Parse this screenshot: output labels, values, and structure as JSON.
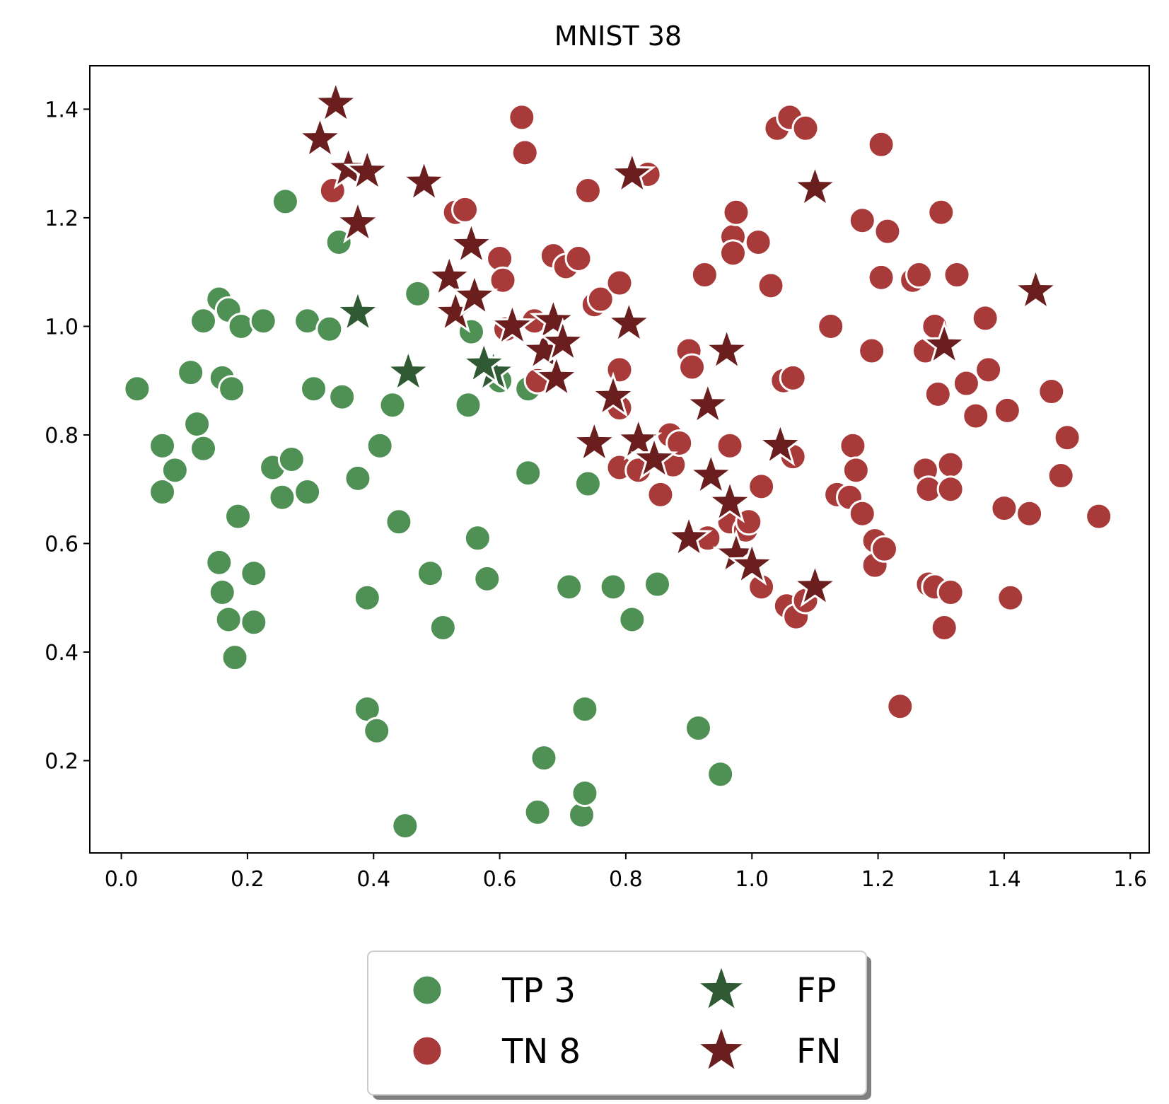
{
  "chart_data": {
    "type": "scatter",
    "title": "MNIST 38",
    "xlabel": "",
    "ylabel": "",
    "xlim": [
      -0.05,
      1.63
    ],
    "ylim": [
      0.03,
      1.48
    ],
    "xticks": [
      0.0,
      0.2,
      0.4,
      0.6,
      0.8,
      1.0,
      1.2,
      1.4,
      1.6
    ],
    "xtick_labels": [
      "0.0",
      "0.2",
      "0.4",
      "0.6",
      "0.8",
      "1.0",
      "1.2",
      "1.4",
      "1.6"
    ],
    "yticks": [
      0.2,
      0.4,
      0.6,
      0.8,
      1.0,
      1.2,
      1.4
    ],
    "ytick_labels": [
      "0.2",
      "0.4",
      "0.6",
      "0.8",
      "1.0",
      "1.2",
      "1.4"
    ],
    "grid": false,
    "legend_position": "bottom-center",
    "series": [
      {
        "name": "TP 3",
        "marker": "circle",
        "color": "#4f9154",
        "points": [
          [
            0.025,
            0.885
          ],
          [
            0.065,
            0.78
          ],
          [
            0.065,
            0.695
          ],
          [
            0.085,
            0.735
          ],
          [
            0.11,
            0.915
          ],
          [
            0.12,
            0.82
          ],
          [
            0.13,
            0.775
          ],
          [
            0.13,
            1.01
          ],
          [
            0.155,
            1.05
          ],
          [
            0.16,
            0.905
          ],
          [
            0.17,
            1.03
          ],
          [
            0.175,
            0.885
          ],
          [
            0.19,
            1.0
          ],
          [
            0.225,
            1.01
          ],
          [
            0.155,
            0.565
          ],
          [
            0.16,
            0.51
          ],
          [
            0.17,
            0.46
          ],
          [
            0.18,
            0.39
          ],
          [
            0.185,
            0.65
          ],
          [
            0.21,
            0.545
          ],
          [
            0.21,
            0.455
          ],
          [
            0.24,
            0.74
          ],
          [
            0.255,
            0.685
          ],
          [
            0.26,
            1.23
          ],
          [
            0.27,
            0.755
          ],
          [
            0.295,
            1.01
          ],
          [
            0.295,
            0.695
          ],
          [
            0.305,
            0.885
          ],
          [
            0.33,
            0.995
          ],
          [
            0.345,
            1.155
          ],
          [
            0.35,
            0.87
          ],
          [
            0.375,
            0.72
          ],
          [
            0.39,
            0.5
          ],
          [
            0.39,
            0.295
          ],
          [
            0.405,
            0.255
          ],
          [
            0.41,
            0.78
          ],
          [
            0.43,
            0.855
          ],
          [
            0.44,
            0.64
          ],
          [
            0.45,
            0.08
          ],
          [
            0.47,
            1.06
          ],
          [
            0.49,
            0.545
          ],
          [
            0.51,
            0.445
          ],
          [
            0.55,
            0.855
          ],
          [
            0.555,
            0.99
          ],
          [
            0.565,
            0.61
          ],
          [
            0.58,
            0.535
          ],
          [
            0.6,
            0.9
          ],
          [
            0.645,
            0.885
          ],
          [
            0.645,
            0.73
          ],
          [
            0.66,
            0.105
          ],
          [
            0.67,
            0.205
          ],
          [
            0.71,
            0.52
          ],
          [
            0.73,
            0.1
          ],
          [
            0.735,
            0.14
          ],
          [
            0.735,
            0.295
          ],
          [
            0.74,
            0.71
          ],
          [
            0.78,
            0.52
          ],
          [
            0.81,
            0.46
          ],
          [
            0.85,
            0.525
          ],
          [
            0.915,
            0.26
          ],
          [
            0.95,
            0.175
          ]
        ]
      },
      {
        "name": "TN 8",
        "marker": "circle",
        "color": "#a83a3a",
        "points": [
          [
            0.335,
            1.25
          ],
          [
            0.53,
            1.21
          ],
          [
            0.545,
            1.215
          ],
          [
            0.6,
            1.125
          ],
          [
            0.605,
            1.085
          ],
          [
            0.61,
            0.995
          ],
          [
            0.635,
            1.385
          ],
          [
            0.64,
            1.32
          ],
          [
            0.655,
            1.01
          ],
          [
            0.66,
            0.9
          ],
          [
            0.685,
            1.13
          ],
          [
            0.705,
            1.11
          ],
          [
            0.725,
            1.125
          ],
          [
            0.74,
            1.25
          ],
          [
            0.75,
            1.04
          ],
          [
            0.76,
            1.05
          ],
          [
            0.79,
            1.08
          ],
          [
            0.79,
            0.92
          ],
          [
            0.79,
            0.85
          ],
          [
            0.79,
            0.74
          ],
          [
            0.82,
            0.735
          ],
          [
            0.835,
            1.28
          ],
          [
            0.855,
            0.69
          ],
          [
            0.87,
            0.8
          ],
          [
            0.875,
            0.745
          ],
          [
            0.885,
            0.785
          ],
          [
            0.9,
            0.955
          ],
          [
            0.905,
            0.925
          ],
          [
            0.925,
            1.095
          ],
          [
            0.93,
            0.61
          ],
          [
            0.965,
            0.78
          ],
          [
            0.965,
            0.64
          ],
          [
            0.97,
            1.165
          ],
          [
            0.97,
            1.135
          ],
          [
            0.975,
            1.21
          ],
          [
            0.99,
            0.625
          ],
          [
            0.995,
            0.64
          ],
          [
            1.01,
            1.155
          ],
          [
            1.015,
            0.705
          ],
          [
            1.015,
            0.52
          ],
          [
            1.03,
            1.075
          ],
          [
            1.04,
            1.365
          ],
          [
            1.05,
            0.9
          ],
          [
            1.055,
            0.485
          ],
          [
            1.06,
            1.385
          ],
          [
            1.065,
            0.905
          ],
          [
            1.065,
            0.76
          ],
          [
            1.07,
            0.465
          ],
          [
            1.085,
            1.365
          ],
          [
            1.085,
            0.495
          ],
          [
            1.125,
            1.0
          ],
          [
            1.135,
            0.69
          ],
          [
            1.155,
            0.685
          ],
          [
            1.16,
            0.78
          ],
          [
            1.165,
            0.735
          ],
          [
            1.175,
            1.195
          ],
          [
            1.175,
            0.655
          ],
          [
            1.19,
            0.955
          ],
          [
            1.195,
            0.605
          ],
          [
            1.195,
            0.56
          ],
          [
            1.205,
            1.09
          ],
          [
            1.205,
            1.335
          ],
          [
            1.215,
            1.175
          ],
          [
            1.21,
            0.59
          ],
          [
            1.235,
            0.3
          ],
          [
            1.255,
            1.085
          ],
          [
            1.265,
            1.095
          ],
          [
            1.275,
            0.955
          ],
          [
            1.275,
            0.735
          ],
          [
            1.28,
            0.7
          ],
          [
            1.28,
            0.525
          ],
          [
            1.29,
            0.52
          ],
          [
            1.29,
            1.0
          ],
          [
            1.295,
            0.875
          ],
          [
            1.3,
            1.21
          ],
          [
            1.305,
            0.445
          ],
          [
            1.315,
            0.745
          ],
          [
            1.315,
            0.7
          ],
          [
            1.315,
            0.51
          ],
          [
            1.325,
            1.095
          ],
          [
            1.34,
            0.895
          ],
          [
            1.355,
            0.835
          ],
          [
            1.37,
            1.015
          ],
          [
            1.375,
            0.92
          ],
          [
            1.4,
            0.665
          ],
          [
            1.405,
            0.845
          ],
          [
            1.41,
            0.5
          ],
          [
            1.44,
            0.655
          ],
          [
            1.475,
            0.88
          ],
          [
            1.49,
            0.725
          ],
          [
            1.5,
            0.795
          ],
          [
            1.55,
            0.65
          ]
        ]
      },
      {
        "name": "FP",
        "marker": "star",
        "color": "#2f5a33",
        "points": [
          [
            0.375,
            1.025
          ],
          [
            0.455,
            0.915
          ],
          [
            0.59,
            0.915
          ],
          [
            0.575,
            0.93
          ]
        ]
      },
      {
        "name": "FN",
        "marker": "star",
        "color": "#6b1e1e",
        "points": [
          [
            0.34,
            1.41
          ],
          [
            0.315,
            1.345
          ],
          [
            0.36,
            1.29
          ],
          [
            0.39,
            1.285
          ],
          [
            0.375,
            1.19
          ],
          [
            0.48,
            1.265
          ],
          [
            0.555,
            1.15
          ],
          [
            0.52,
            1.09
          ],
          [
            0.53,
            1.025
          ],
          [
            0.56,
            1.055
          ],
          [
            0.62,
            1.0
          ],
          [
            0.67,
            0.955
          ],
          [
            0.685,
            1.01
          ],
          [
            0.69,
            0.905
          ],
          [
            0.7,
            0.97
          ],
          [
            0.75,
            0.785
          ],
          [
            0.78,
            0.87
          ],
          [
            0.805,
            1.005
          ],
          [
            0.81,
            1.28
          ],
          [
            0.82,
            0.79
          ],
          [
            0.845,
            0.755
          ],
          [
            0.9,
            0.61
          ],
          [
            0.93,
            0.855
          ],
          [
            0.935,
            0.725
          ],
          [
            0.96,
            0.955
          ],
          [
            0.965,
            0.675
          ],
          [
            0.975,
            0.58
          ],
          [
            1.0,
            0.56
          ],
          [
            1.045,
            0.78
          ],
          [
            1.1,
            1.255
          ],
          [
            1.1,
            0.52
          ],
          [
            1.305,
            0.965
          ],
          [
            1.45,
            1.065
          ]
        ]
      }
    ],
    "legend": {
      "entries": [
        {
          "label": "TP 3",
          "series": "TP 3"
        },
        {
          "label": "TN 8",
          "series": "TN 8"
        },
        {
          "label": "FP",
          "series": "FP"
        },
        {
          "label": "FN",
          "series": "FN"
        }
      ]
    }
  }
}
